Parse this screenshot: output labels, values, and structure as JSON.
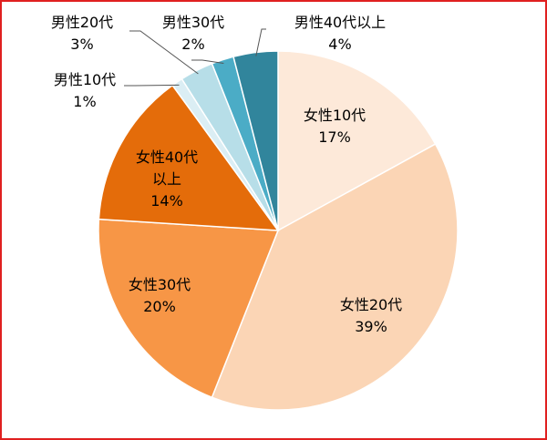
{
  "chart_data": {
    "type": "pie",
    "categories": [
      "女性10代",
      "女性20代",
      "女性30代",
      "女性40代以上",
      "男性10代",
      "男性20代",
      "男性30代",
      "男性40代以上"
    ],
    "values": [
      17,
      39,
      20,
      14,
      1,
      3,
      2,
      4
    ],
    "value_labels": [
      "17%",
      "39%",
      "20%",
      "14%",
      "1%",
      "3%",
      "2%",
      "4%"
    ],
    "colors": [
      "#fde9d9",
      "#fbd5b5",
      "#f79646",
      "#e46c0a",
      "#dbeef4",
      "#b7dee8",
      "#4bacc6",
      "#31859c"
    ]
  }
}
